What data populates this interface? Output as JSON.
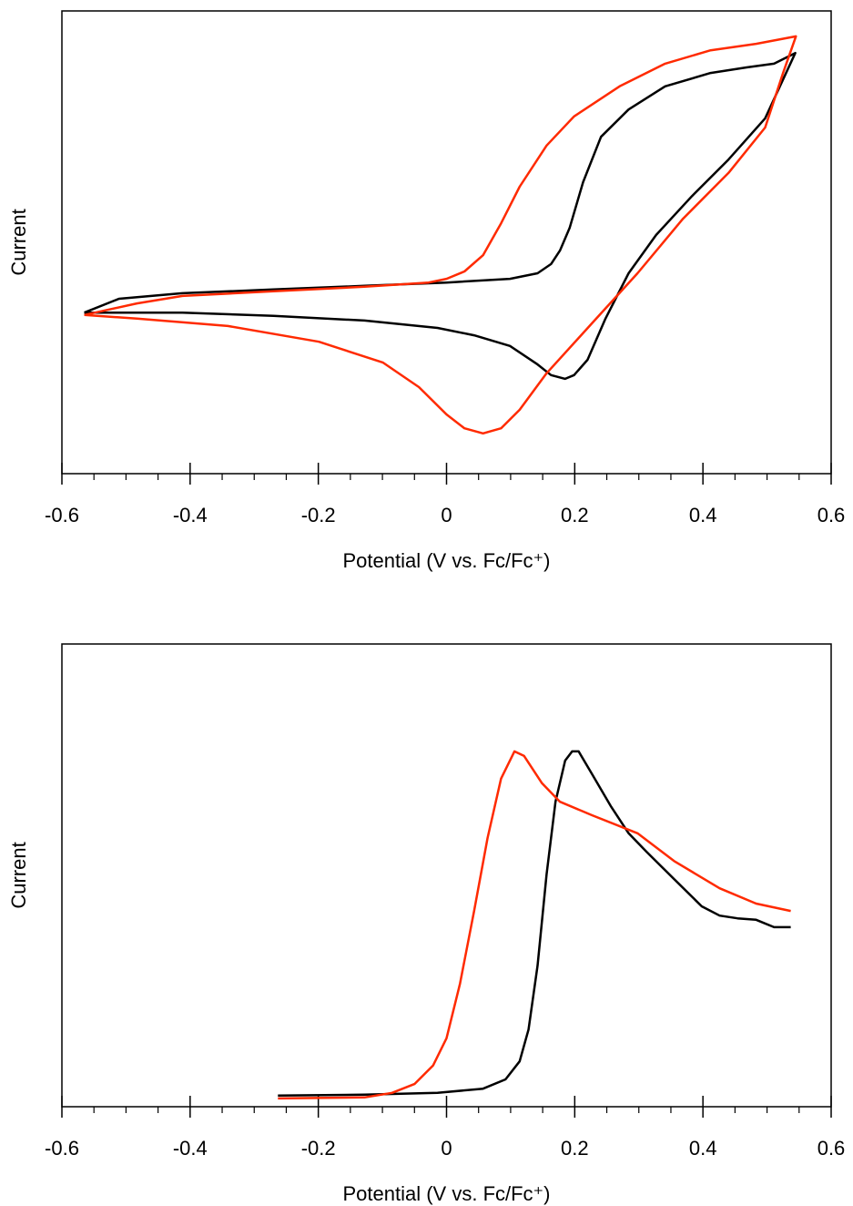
{
  "chart_data": [
    {
      "type": "line",
      "x_label": "Potential (V vs. Fc/Fc⁺)",
      "y_label": "Current",
      "xlim": [
        -0.6,
        0.6
      ],
      "xticks": [
        -0.6,
        -0.4,
        -0.2,
        0,
        0.2,
        0.4,
        0.6
      ],
      "xminorticks": [
        -0.55,
        -0.5,
        -0.45,
        -0.35,
        -0.3,
        -0.25,
        -0.15,
        -0.1,
        -0.05,
        0.05,
        0.1,
        0.15,
        0.25,
        0.3,
        0.35,
        0.45,
        0.5,
        0.55
      ],
      "ylim": [
        0,
        100
      ],
      "series": [
        {
          "color": "#000000",
          "x": [
            -0.565,
            -0.511,
            -0.412,
            -0.27,
            -0.128,
            0,
            0.099,
            0.142,
            0.163,
            0.177,
            0.192,
            0.213,
            0.241,
            0.284,
            0.341,
            0.412,
            0.468,
            0.511,
            0.544,
            0.497,
            0.44,
            0.383,
            0.327,
            0.284,
            0.248,
            0.22,
            0.199,
            0.185,
            0.163,
            0.142,
            0.099,
            0.043,
            -0.014,
            -0.128,
            -0.27,
            -0.412,
            -0.565
          ],
          "values": [
            34.8,
            37.8,
            39.0,
            39.8,
            40.6,
            41.3,
            42.1,
            43.3,
            45.3,
            48.2,
            53.1,
            63.0,
            72.8,
            78.7,
            83.7,
            86.6,
            87.8,
            88.6,
            90.9,
            76.8,
            67.9,
            60.0,
            51.6,
            43.3,
            33.5,
            24.6,
            21.3,
            20.5,
            21.3,
            23.6,
            27.6,
            29.9,
            31.5,
            33.1,
            34.1,
            34.8,
            34.8
          ]
        },
        {
          "color": "#ff2a00",
          "x": [
            -0.565,
            -0.483,
            -0.412,
            -0.27,
            -0.128,
            -0.028,
            0,
            0.028,
            0.057,
            0.085,
            0.114,
            0.156,
            0.199,
            0.27,
            0.341,
            0.412,
            0.483,
            0.545,
            0.525,
            0.497,
            0.44,
            0.369,
            0.298,
            0.227,
            0.156,
            0.114,
            0.085,
            0.057,
            0.028,
            0,
            -0.043,
            -0.099,
            -0.199,
            -0.341,
            -0.483,
            -0.565
          ],
          "values": [
            34.3,
            36.8,
            38.4,
            39.4,
            40.4,
            41.3,
            42.1,
            43.7,
            47.2,
            54.1,
            62.0,
            70.9,
            77.2,
            83.7,
            88.6,
            91.5,
            92.9,
            94.5,
            86.6,
            74.8,
            65.0,
            55.1,
            43.3,
            32.5,
            21.7,
            13.8,
            9.8,
            8.7,
            9.8,
            12.8,
            18.7,
            24.0,
            28.5,
            31.9,
            33.5,
            34.3
          ]
        }
      ]
    },
    {
      "type": "line",
      "x_label": "Potential (V vs. Fc/Fc⁺)",
      "y_label": "Current",
      "xlim": [
        -0.6,
        0.6
      ],
      "xticks": [
        -0.6,
        -0.4,
        -0.2,
        0,
        0.2,
        0.4,
        0.6
      ],
      "xminorticks": [
        -0.55,
        -0.5,
        -0.45,
        -0.35,
        -0.3,
        -0.25,
        -0.15,
        -0.1,
        -0.05,
        0.05,
        0.1,
        0.15,
        0.25,
        0.3,
        0.35,
        0.45,
        0.5,
        0.55
      ],
      "ylim": [
        0,
        100
      ],
      "series": [
        {
          "color": "#000000",
          "x": [
            -0.263,
            -0.128,
            -0.014,
            0.057,
            0.092,
            0.114,
            0.128,
            0.142,
            0.156,
            0.17,
            0.185,
            0.196,
            0.206,
            0.227,
            0.256,
            0.284,
            0.312,
            0.355,
            0.398,
            0.426,
            0.454,
            0.483,
            0.511,
            0.537
          ],
          "values": [
            2.4,
            2.6,
            3.0,
            3.9,
            5.9,
            9.8,
            16.7,
            30.5,
            50.2,
            65.9,
            74.8,
            76.8,
            76.8,
            71.9,
            65.0,
            59.1,
            55.1,
            49.2,
            43.3,
            41.3,
            40.7,
            40.4,
            38.8,
            38.8
          ]
        },
        {
          "color": "#ff2a00",
          "x": [
            -0.263,
            -0.128,
            -0.085,
            -0.05,
            -0.021,
            0,
            0.021,
            0.043,
            0.064,
            0.085,
            0.106,
            0.121,
            0.149,
            0.177,
            0.227,
            0.298,
            0.355,
            0.426,
            0.483,
            0.537
          ],
          "values": [
            1.8,
            2.0,
            3.0,
            4.9,
            8.9,
            14.8,
            26.6,
            42.3,
            58.1,
            70.9,
            76.8,
            75.8,
            69.9,
            65.9,
            63.0,
            59.1,
            53.1,
            47.2,
            43.9,
            42.3
          ]
        }
      ]
    }
  ]
}
